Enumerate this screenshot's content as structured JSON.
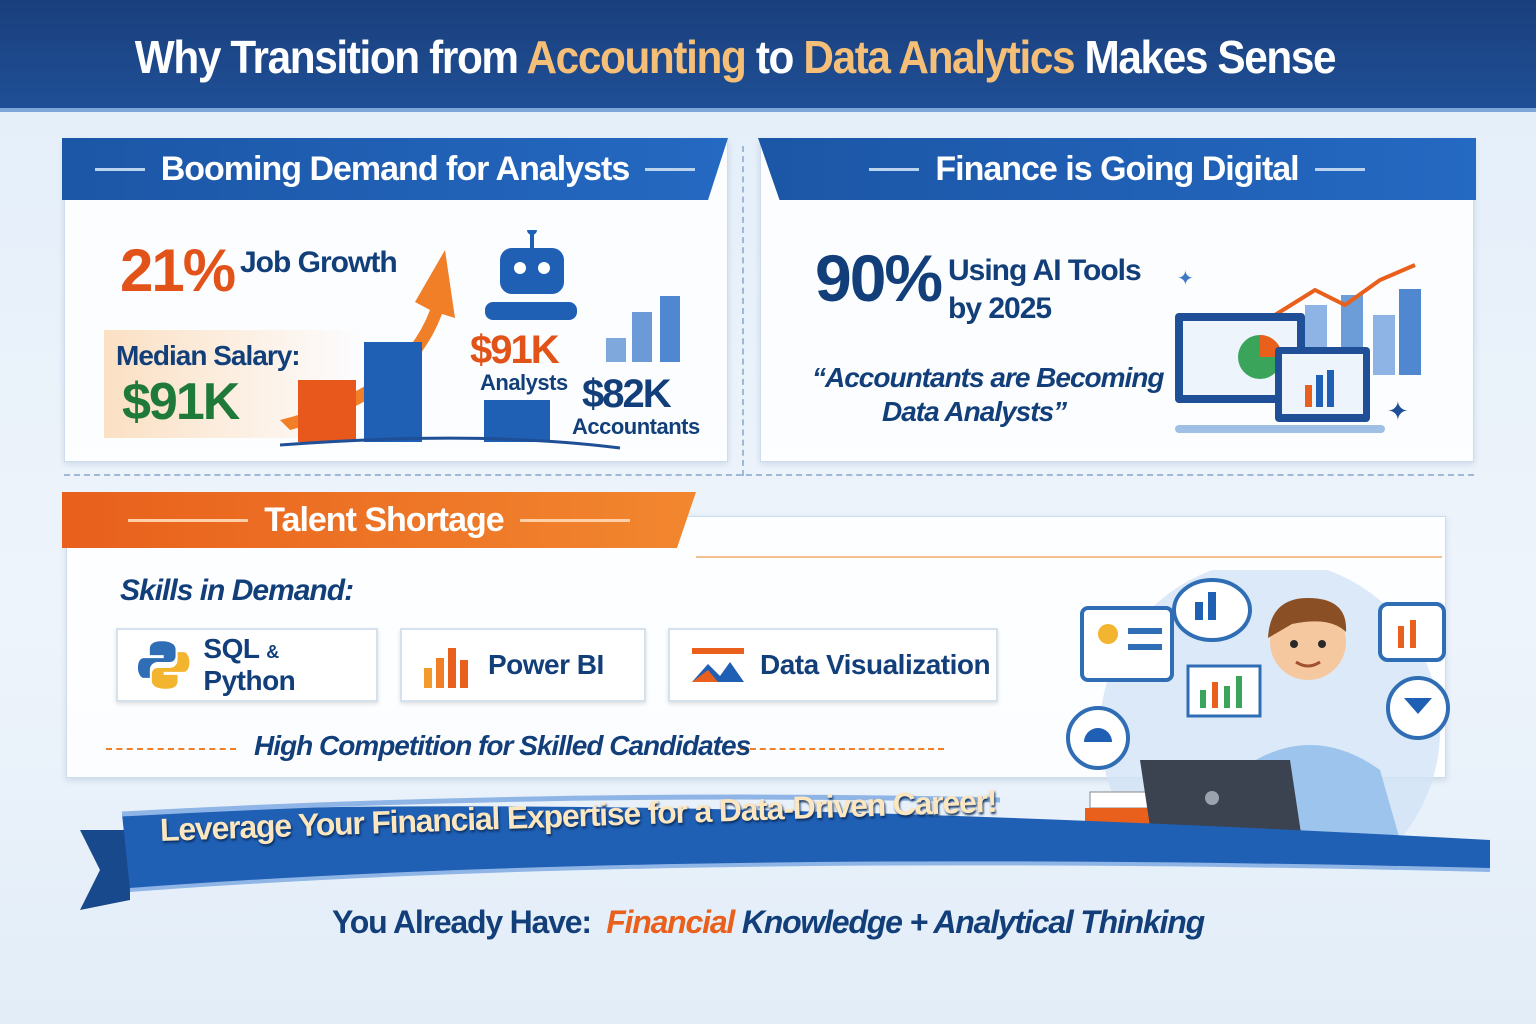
{
  "title": {
    "part1": "Why Transition from ",
    "highlight1": "Accounting",
    "part2": " to ",
    "highlight2": "Data Analytics",
    "part3": " Makes Sense"
  },
  "demand": {
    "heading": "Booming Demand for Analysts",
    "growth_value": "21%",
    "growth_label": "Job Growth",
    "salary_label": "Median Salary:",
    "salary_value": "$91K",
    "analysts_value": "$91K",
    "analysts_label": "Analysts",
    "accountants_value": "$82K",
    "accountants_label": "Accountants"
  },
  "digital": {
    "heading": "Finance is Going Digital",
    "ai_value": "90%",
    "ai_line1": "Using AI Tools",
    "ai_line2": "by 2025",
    "quote_line1": "“Accountants are Becoming",
    "quote_line2": "Data Analysts”"
  },
  "talent": {
    "heading": "Talent Shortage",
    "skills_label": "Skills in Demand:",
    "skills": [
      {
        "label_a": "SQL",
        "amp": "&",
        "label_b": "Python",
        "icon": "python-icon"
      },
      {
        "label": "Power BI",
        "icon": "power-bi-icon"
      },
      {
        "label": "Data Visualization",
        "icon": "data-visualization-icon"
      }
    ],
    "competition": "High Competition for Skilled Candidates"
  },
  "banner": {
    "text": "Leverage Your Financial Expertise for a Data-Driven Career!"
  },
  "footer": {
    "prefix": "You Already Have:",
    "highlight": "Financial",
    "rest": "Knowledge + Analytical Thinking"
  },
  "colors": {
    "navy": "#123f7a",
    "blue": "#1f5fb4",
    "orange": "#e8601c",
    "green": "#1f7a3a",
    "gold": "#f5bf78"
  }
}
